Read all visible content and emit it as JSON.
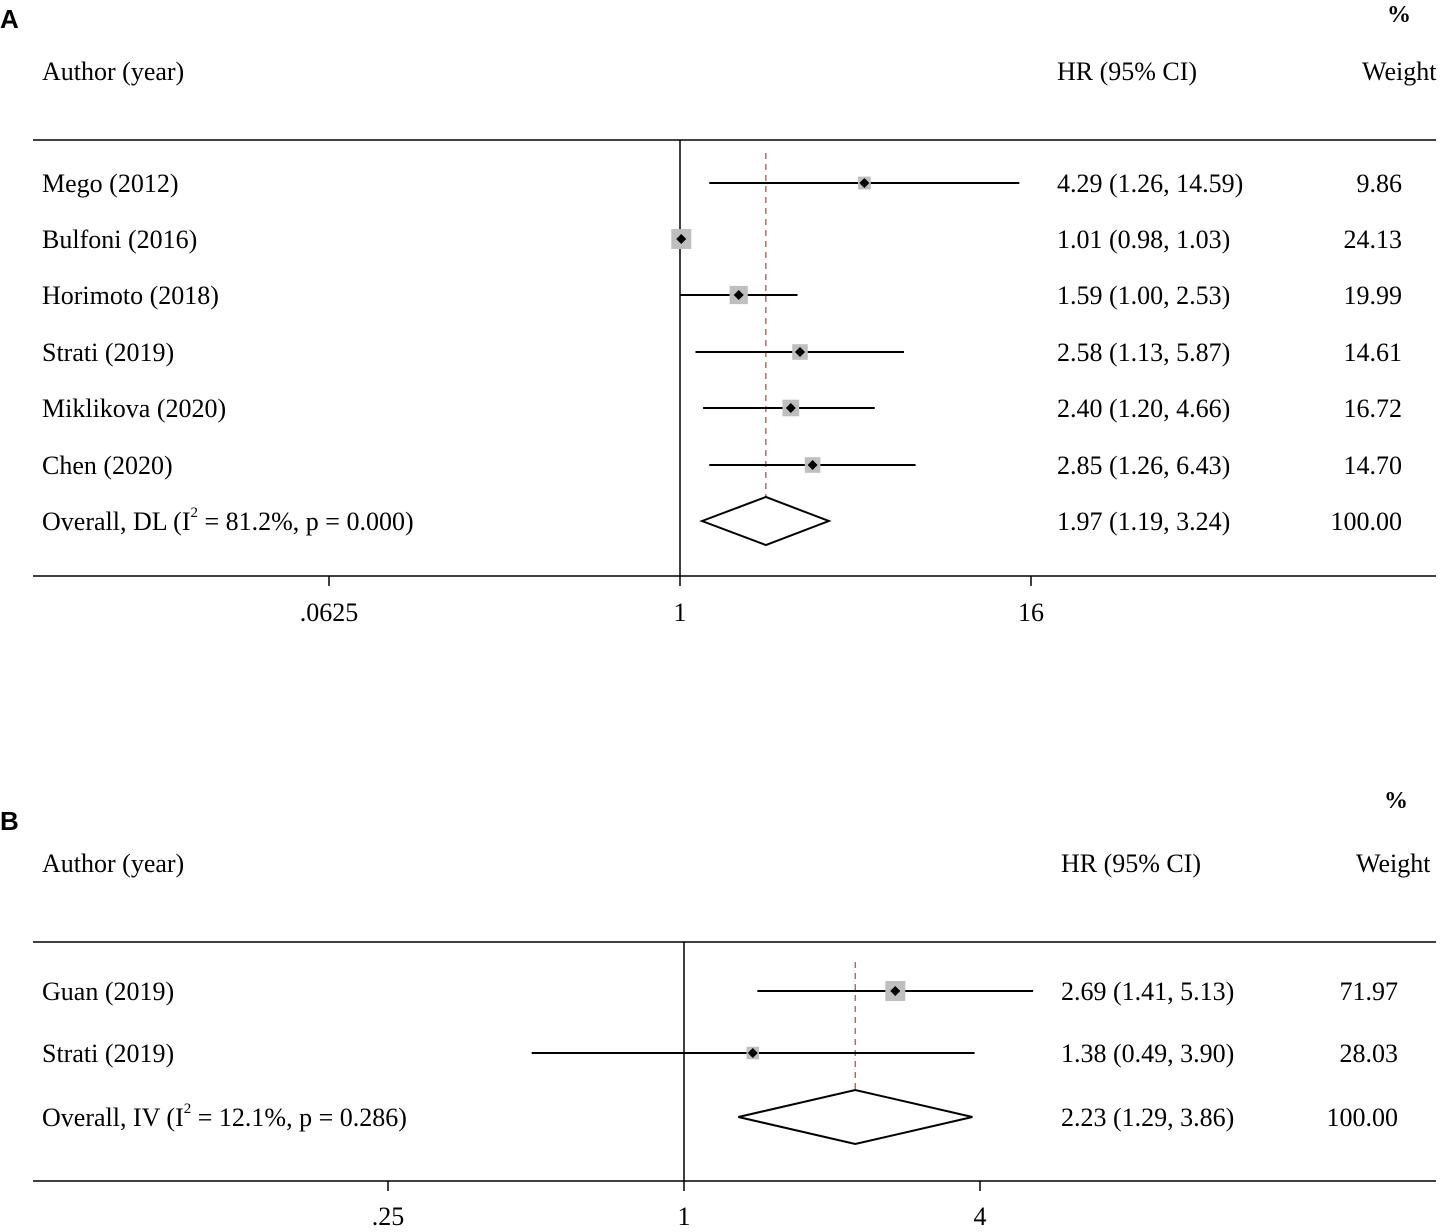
{
  "chart_data": [
    {
      "type": "forest",
      "panel_label": "A",
      "header": {
        "study": "Author (year)",
        "effect": "HR (95% CI)",
        "weight": "Weight",
        "weight_unit": "%"
      },
      "x_scale": "log",
      "xticks": [
        0.0625,
        1,
        16
      ],
      "xtick_labels": [
        ".0625",
        "1",
        "16"
      ],
      "reference_line": 1,
      "studies": [
        {
          "label": "Mego (2012)",
          "hr": 4.29,
          "lo": 1.26,
          "hi": 14.59,
          "ci_text": "4.29 (1.26, 14.59)",
          "weight": 9.86,
          "weight_text": "9.86"
        },
        {
          "label": "Bulfoni (2016)",
          "hr": 1.01,
          "lo": 0.98,
          "hi": 1.03,
          "ci_text": "1.01 (0.98, 1.03)",
          "weight": 24.13,
          "weight_text": "24.13"
        },
        {
          "label": "Horimoto (2018)",
          "hr": 1.59,
          "lo": 1.0,
          "hi": 2.53,
          "ci_text": "1.59 (1.00, 2.53)",
          "weight": 19.99,
          "weight_text": "19.99"
        },
        {
          "label": "Strati (2019)",
          "hr": 2.58,
          "lo": 1.13,
          "hi": 5.87,
          "ci_text": "2.58 (1.13, 5.87)",
          "weight": 14.61,
          "weight_text": "14.61"
        },
        {
          "label": "Miklikova (2020)",
          "hr": 2.4,
          "lo": 1.2,
          "hi": 4.66,
          "ci_text": "2.40 (1.20, 4.66)",
          "weight": 16.72,
          "weight_text": "16.72"
        },
        {
          "label": "Chen (2020)",
          "hr": 2.85,
          "lo": 1.26,
          "hi": 6.43,
          "ci_text": "2.85 (1.26, 6.43)",
          "weight": 14.7,
          "weight_text": "14.70"
        }
      ],
      "overall": {
        "label_prefix": "Overall, DL (I",
        "label_sup": "2",
        "label_suffix": " = 81.2%, p = 0.000)",
        "hr": 1.97,
        "lo": 1.19,
        "hi": 3.24,
        "ci_text": "1.97 (1.19, 3.24)",
        "weight_text": "100.00"
      }
    },
    {
      "type": "forest",
      "panel_label": "B",
      "header": {
        "study": "Author (year)",
        "effect": "HR (95% CI)",
        "weight": "Weight",
        "weight_unit": "%"
      },
      "x_scale": "log",
      "xticks": [
        0.25,
        1,
        4
      ],
      "xtick_labels": [
        ".25",
        "1",
        "4"
      ],
      "reference_line": 1,
      "studies": [
        {
          "label": "Guan (2019)",
          "hr": 2.69,
          "lo": 1.41,
          "hi": 5.13,
          "ci_text": "2.69 (1.41, 5.13)",
          "weight": 71.97,
          "weight_text": "71.97"
        },
        {
          "label": "Strati (2019)",
          "hr": 1.38,
          "lo": 0.49,
          "hi": 3.9,
          "ci_text": "1.38 (0.49, 3.90)",
          "weight": 28.03,
          "weight_text": "28.03"
        }
      ],
      "overall": {
        "label_prefix": "Overall, IV (I",
        "label_sup": "2",
        "label_suffix": " = 12.1%, p = 0.286)",
        "hr": 2.23,
        "lo": 1.29,
        "hi": 3.86,
        "ci_text": "2.23 (1.29, 3.86)",
        "weight_text": "100.00"
      }
    }
  ],
  "colors": {
    "ink": "#000000",
    "weight_box": "#bfbfbf",
    "overall_line": "#c0504d"
  }
}
